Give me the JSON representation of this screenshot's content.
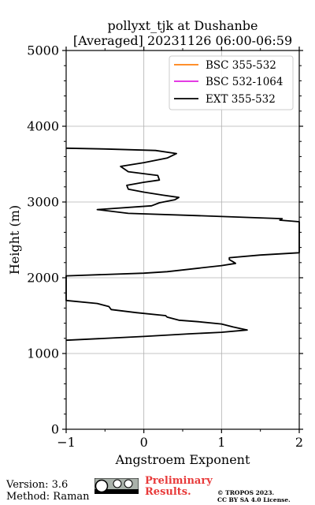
{
  "chart_data": {
    "type": "line",
    "title": "pollyxt_tjk at Dushanbe",
    "subtitle": "[Averaged] 20231126 06:00-06:59",
    "xlabel": "Angstroem Exponent",
    "ylabel": "Height (m)",
    "xlim": [
      -1,
      2
    ],
    "ylim": [
      0,
      5000
    ],
    "xticks": [
      -1,
      0,
      1,
      2
    ],
    "xtick_labels": [
      "−1",
      "0",
      "1",
      "2"
    ],
    "yticks": [
      0,
      1000,
      2000,
      3000,
      4000,
      5000
    ],
    "ytick_labels": [
      "0",
      "1000",
      "2000",
      "3000",
      "4000",
      "5000"
    ],
    "grid": true,
    "legend_position": "top-right",
    "series": [
      {
        "name": "BSC 355-532",
        "color": "#ff7f0e",
        "points": []
      },
      {
        "name": "BSC 532-1064",
        "color": "#e020e0",
        "points": []
      },
      {
        "name": "EXT 355-532",
        "color": "#000000",
        "points": [
          [
            -1.0,
            1175
          ],
          [
            0.0,
            1225
          ],
          [
            0.6,
            1260
          ],
          [
            1.0,
            1280
          ],
          [
            1.33,
            1310
          ],
          [
            1.15,
            1350
          ],
          [
            1.0,
            1390
          ],
          [
            0.7,
            1420
          ],
          [
            0.45,
            1440
          ],
          [
            0.3,
            1480
          ],
          [
            0.28,
            1500
          ],
          [
            -0.1,
            1540
          ],
          [
            -0.42,
            1580
          ],
          [
            -0.45,
            1620
          ],
          [
            -0.6,
            1660
          ],
          [
            -1.0,
            1700
          ],
          [
            -1.0,
            2025
          ],
          [
            0.0,
            2060
          ],
          [
            0.3,
            2080
          ],
          [
            1.0,
            2160
          ],
          [
            1.18,
            2190
          ],
          [
            1.15,
            2210
          ],
          [
            1.1,
            2240
          ],
          [
            1.1,
            2265
          ],
          [
            1.5,
            2300
          ],
          [
            2.0,
            2330
          ],
          [
            2.0,
            2740
          ],
          [
            1.75,
            2760
          ],
          [
            1.78,
            2780
          ],
          [
            0.7,
            2820
          ],
          [
            -0.2,
            2850
          ],
          [
            -0.6,
            2900
          ],
          [
            0.1,
            2950
          ],
          [
            0.2,
            2990
          ],
          [
            0.4,
            3030
          ],
          [
            0.45,
            3060
          ],
          [
            0.25,
            3090
          ],
          [
            0.0,
            3130
          ],
          [
            -0.2,
            3170
          ],
          [
            -0.22,
            3220
          ],
          [
            0.0,
            3260
          ],
          [
            0.2,
            3290
          ],
          [
            0.18,
            3350
          ],
          [
            -0.2,
            3400
          ],
          [
            -0.3,
            3470
          ],
          [
            0.0,
            3520
          ],
          [
            0.3,
            3580
          ],
          [
            0.42,
            3640
          ],
          [
            0.15,
            3680
          ],
          [
            -0.5,
            3700
          ],
          [
            -1.0,
            3710
          ]
        ]
      }
    ]
  },
  "footer": {
    "version": "Version: 3.6",
    "method": "Method: Raman",
    "preliminary_line1": "Preliminary",
    "preliminary_line2": "Results.",
    "copyright_line1": "© TROPOS 2023.",
    "copyright_line2": "CC BY SA 4.0 License."
  },
  "colors": {
    "grid": "#b0b0b0",
    "preliminary": "#e83a3a"
  }
}
